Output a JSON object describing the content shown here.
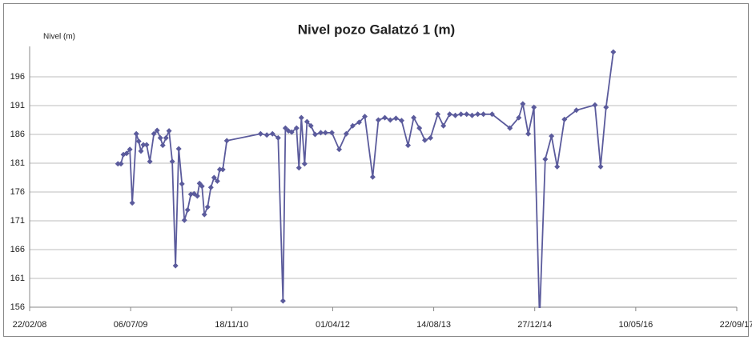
{
  "chart_data": {
    "type": "line",
    "title": "Nivel pozo Galatzó 1 (m)",
    "y_label": "Nivel (m)",
    "color": "#5b5b9c",
    "grid": true,
    "ylim": [
      156,
      201
    ],
    "yticks": [
      156,
      161,
      166,
      171,
      176,
      181,
      186,
      191,
      196
    ],
    "xlim": [
      "2008-02-22",
      "2017-09-22"
    ],
    "xticks": [
      {
        "value": "2008-02-22",
        "label": "22/02/08"
      },
      {
        "value": "2009-07-06",
        "label": "06/07/09"
      },
      {
        "value": "2010-11-18",
        "label": "18/11/10"
      },
      {
        "value": "2012-04-01",
        "label": "01/04/12"
      },
      {
        "value": "2013-08-14",
        "label": "14/08/13"
      },
      {
        "value": "2014-12-27",
        "label": "27/12/14"
      },
      {
        "value": "2016-05-10",
        "label": "10/05/16"
      },
      {
        "value": "2017-09-22",
        "label": "22/09/17"
      }
    ],
    "x": [
      "2009-05-04",
      "2009-05-19",
      "2009-05-31",
      "2009-06-16",
      "2009-07-02",
      "2009-07-14",
      "2009-08-03",
      "2009-08-15",
      "2009-08-26",
      "2009-09-07",
      "2009-09-23",
      "2009-10-09",
      "2009-10-29",
      "2009-11-14",
      "2009-11-30",
      "2009-12-12",
      "2009-12-28",
      "2010-01-12",
      "2010-01-28",
      "2010-02-13",
      "2010-03-01",
      "2010-03-17",
      "2010-03-29",
      "2010-04-14",
      "2010-04-30",
      "2010-05-16",
      "2010-06-01",
      "2010-06-12",
      "2010-06-24",
      "2010-07-06",
      "2010-07-22",
      "2010-08-07",
      "2010-08-23",
      "2010-09-08",
      "2010-09-20",
      "2010-10-05",
      "2010-10-25",
      "2011-04-10",
      "2011-05-11",
      "2011-06-08",
      "2011-07-06",
      "2011-07-30",
      "2011-08-11",
      "2011-08-26",
      "2011-09-11",
      "2011-10-05",
      "2011-10-17",
      "2011-10-29",
      "2011-11-14",
      "2011-11-26",
      "2011-12-15",
      "2012-01-05",
      "2012-02-02",
      "2012-02-25",
      "2012-03-28",
      "2012-05-03",
      "2012-06-07",
      "2012-07-09",
      "2012-08-10",
      "2012-09-07",
      "2012-10-16",
      "2012-11-13",
      "2012-12-15",
      "2013-01-11",
      "2013-02-08",
      "2013-03-08",
      "2013-04-09",
      "2013-05-07",
      "2013-06-04",
      "2013-07-01",
      "2013-07-29",
      "2013-09-03",
      "2013-10-01",
      "2013-11-01",
      "2013-11-29",
      "2013-12-27",
      "2014-01-24",
      "2014-02-20",
      "2014-03-20",
      "2014-04-17",
      "2014-05-30",
      "2014-08-26",
      "2014-10-09",
      "2014-10-29",
      "2014-11-25",
      "2014-12-23",
      "2015-01-20",
      "2015-02-17",
      "2015-03-20",
      "2015-04-17",
      "2015-05-23",
      "2015-07-21",
      "2015-10-21",
      "2015-11-18",
      "2015-12-15",
      "2016-01-20"
    ],
    "values": [
      180.9,
      180.9,
      182.5,
      182.7,
      183.4,
      174.1,
      186.1,
      184.8,
      183.1,
      184.2,
      184.2,
      181.3,
      186.1,
      186.7,
      185.4,
      184.1,
      185.4,
      186.6,
      181.3,
      163.2,
      183.5,
      177.4,
      171.1,
      172.9,
      175.6,
      175.7,
      175.3,
      177.5,
      177.0,
      172.1,
      173.4,
      176.8,
      178.5,
      177.9,
      179.9,
      179.9,
      184.9,
      186.1,
      185.9,
      186.1,
      185.4,
      157.1,
      187.1,
      186.6,
      186.4,
      187.1,
      180.2,
      188.9,
      180.9,
      188.2,
      187.5,
      186.0,
      186.3,
      186.3,
      186.3,
      183.4,
      186.1,
      187.5,
      188.1,
      189.1,
      178.6,
      188.5,
      188.9,
      188.5,
      188.8,
      188.4,
      184.1,
      188.9,
      187.1,
      185.0,
      185.4,
      189.5,
      187.5,
      189.5,
      189.3,
      189.5,
      189.5,
      189.3,
      189.5,
      189.5,
      189.5,
      187.1,
      188.9,
      191.3,
      186.1,
      190.7,
      154,
      181.7,
      185.7,
      180.4,
      188.6,
      190.2,
      191.1,
      180.4,
      190.7,
      200.3
    ]
  }
}
